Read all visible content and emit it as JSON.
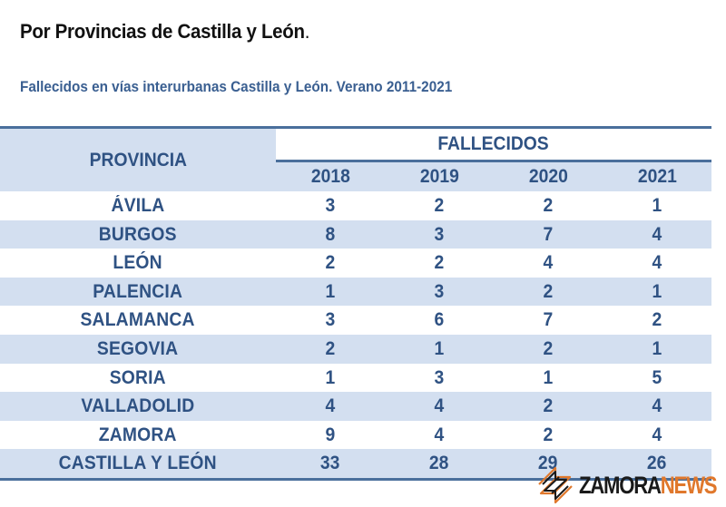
{
  "heading": {
    "title": "Por Provincias de Castilla y León",
    "title_suffix": ".",
    "subtitle": "Fallecidos  en vías interurbanas Castilla y León. Verano 2011-2021"
  },
  "table": {
    "col_header_province": "PROVINCIA",
    "group_header": "FALLECIDOS",
    "years": [
      "2018",
      "2019",
      "2020",
      "2021"
    ],
    "rows": [
      {
        "province": "ÁVILA",
        "values": [
          "3",
          "2",
          "2",
          "1"
        ]
      },
      {
        "province": "BURGOS",
        "values": [
          "8",
          "3",
          "7",
          "4"
        ]
      },
      {
        "province": "LEÓN",
        "values": [
          "2",
          "2",
          "4",
          "4"
        ]
      },
      {
        "province": "PALENCIA",
        "values": [
          "1",
          "3",
          "2",
          "1"
        ]
      },
      {
        "province": "SALAMANCA",
        "values": [
          "3",
          "6",
          "7",
          "2"
        ]
      },
      {
        "province": "SEGOVIA",
        "values": [
          "2",
          "1",
          "2",
          "1"
        ]
      },
      {
        "province": "SORIA",
        "values": [
          "1",
          "3",
          "1",
          "5"
        ]
      },
      {
        "province": "VALLADOLID",
        "values": [
          "4",
          "4",
          "2",
          "4"
        ]
      },
      {
        "province": "ZAMORA",
        "values": [
          "9",
          "4",
          "2",
          "4"
        ]
      },
      {
        "province": "CASTILLA Y LEÓN",
        "values": [
          "33",
          "28",
          "29",
          "26"
        ]
      }
    ]
  },
  "watermark": {
    "brand_part1": "ZAMORA",
    "brand_part2": "NEWS",
    "accent_color": "#e0782c"
  },
  "colors": {
    "text_blue": "#2f5283",
    "band_blue": "#d3dff0",
    "rule_blue": "#4a6f9c"
  }
}
